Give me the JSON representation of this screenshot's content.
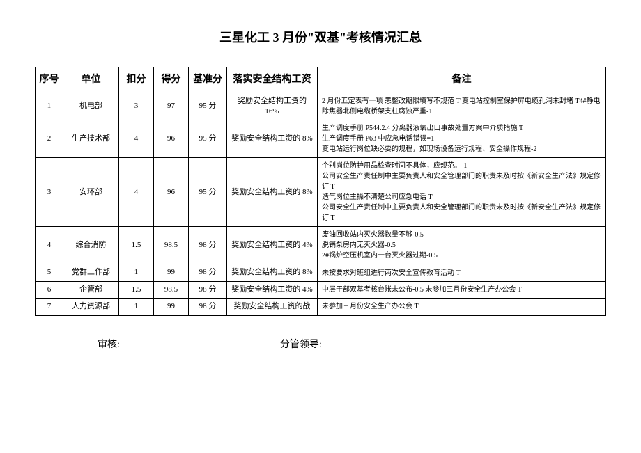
{
  "title": "三星化工 3 月份\"双基\"考核情况汇总",
  "headers": {
    "seq": "序号",
    "unit": "单位",
    "deduct": "扣分",
    "score": "得分",
    "base": "基准分",
    "impl": "落实安全结构工资",
    "note": "备注"
  },
  "rows": [
    {
      "seq": "1",
      "unit": "机电部",
      "deduct": "3",
      "score": "97",
      "base": "95 分",
      "impl": "奖励安全结构工资的 16%",
      "note": "2 月份五定表有一项 患整改期限填写不规范 T 变电站控制室保护屏电缆孔洞未封堵 T4#静电除焦器北侧电缆桥架支柱腐蚀严重-1"
    },
    {
      "seq": "2",
      "unit": "生产技术部",
      "deduct": "4",
      "score": "96",
      "base": "95 分",
      "impl": "奖励安全结构工资的 8%",
      "note": "生产调度手册 P544.2.4 分离器液氧出口事故处置方案中介质措施 T\n生产调度手册 P63 中应急电话错误=1\n变电站运行岗位缺必要的规程，如现场设备运行规程、安全操作规程-2"
    },
    {
      "seq": "3",
      "unit": "安环部",
      "deduct": "4",
      "score": "96",
      "base": "95 分",
      "impl": "奖励安全结构工资的 8%",
      "note": "个别岗位防护用品检查时间不具体，应规范。-1\n公司安全生产责任制中主要负责人和安全管理部门的职责未及时按《新安全生产法》规定修订 T\n造气岗位主操不清楚公司应急电话 T\n公司安全生产责任制中主要负责人和安全管理部门的职责未及时按《新安全生产法》规定修订 T"
    },
    {
      "seq": "4",
      "unit": "综合消防",
      "deduct": "1.5",
      "score": "98.5",
      "base": "98 分",
      "impl": "奖励安全结构工资的 4%",
      "note": "废油回收站内灭火器数量不够-0.5\n脱销泵房内无灭火器-0.5\n2#锅炉空压机室内一台灭火器过期-0.5"
    },
    {
      "seq": "5",
      "unit": "党群工作部",
      "deduct": "1",
      "score": "99",
      "base": "98 分",
      "impl": "奖励安全结构工资的 8%",
      "note": "未按要求对班组进行两次安全宣传教育活动 T"
    },
    {
      "seq": "6",
      "unit": "企管部",
      "deduct": "1.5",
      "score": "98.5",
      "base": "98 分",
      "impl": "奖励安全结构工资的 4%",
      "note": "中层干部双基考核台账未公布-0.5 未参加三月份安全生产办公会 T"
    },
    {
      "seq": "7",
      "unit": "人力资源部",
      "deduct": "1",
      "score": "99",
      "base": "98 分",
      "impl": "奖励安全结构工资的战",
      "note": "未参加三月份安全生产办公会 T"
    }
  ],
  "footer": {
    "audit": "审核:",
    "leader": "分管领导:"
  }
}
